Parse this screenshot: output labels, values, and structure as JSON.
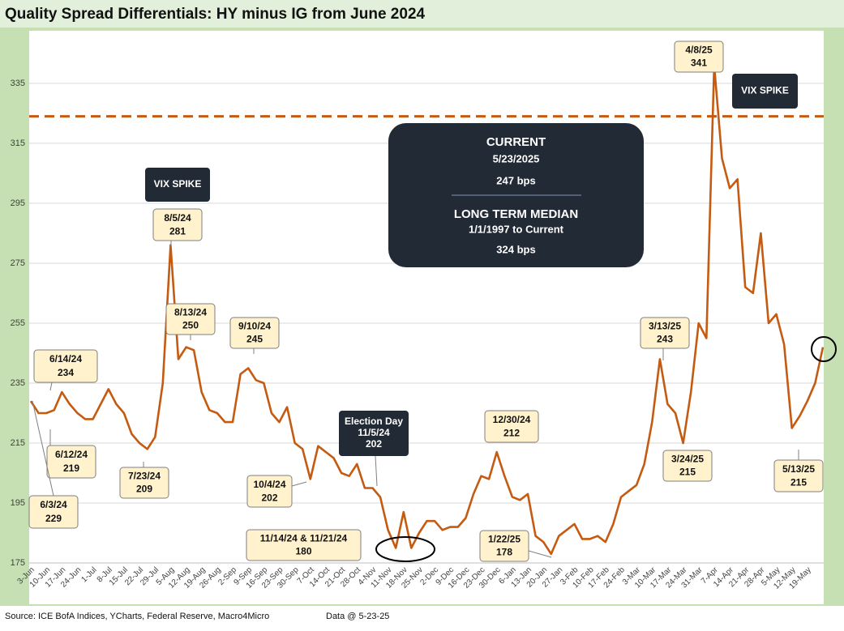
{
  "chart_data": {
    "type": "line",
    "title": "Quality Spread Differentials: HY minus IG from June 2024",
    "categories": [
      "3-Jun",
      null,
      "10-Jun",
      null,
      "17-Jun",
      null,
      "24-Jun",
      null,
      "1-Jul",
      null,
      "8-Jul",
      null,
      "15-Jul",
      null,
      "22-Jul",
      null,
      "29-Jul",
      null,
      "5-Aug",
      null,
      "12-Aug",
      null,
      "19-Aug",
      null,
      "26-Aug",
      null,
      "2-Sep",
      null,
      "9-Sep",
      null,
      "16-Sep",
      null,
      "23-Sep",
      null,
      "30-Sep",
      null,
      "7-Oct",
      null,
      "14-Oct",
      null,
      "21-Oct",
      null,
      "28-Oct",
      null,
      "4-Nov",
      null,
      "11-Nov",
      null,
      "18-Nov",
      null,
      "25-Nov",
      null,
      "2-Dec",
      null,
      "9-Dec",
      null,
      "16-Dec",
      null,
      "23-Dec",
      null,
      "30-Dec",
      null,
      "6-Jan",
      null,
      "13-Jan",
      null,
      "20-Jan",
      null,
      "27-Jan",
      null,
      "3-Feb",
      null,
      "10-Feb",
      null,
      "17-Feb",
      null,
      "24-Feb",
      null,
      "3-Mar",
      null,
      "10-Mar",
      null,
      "17-Mar",
      null,
      "24-Mar",
      null,
      "31-Mar",
      null,
      "7-Apr",
      null,
      "14-Apr",
      null,
      "21-Apr",
      null,
      "28-Apr",
      null,
      "5-May",
      null,
      "12-May",
      null,
      "19-May",
      null,
      null
    ],
    "series": [
      {
        "name": "HY minus IG",
        "color": "#c55a11",
        "values": [
          229,
          225,
          225,
          226,
          232,
          228,
          225,
          223,
          223,
          228,
          233,
          228,
          225,
          218,
          215,
          213,
          217,
          235,
          281,
          243,
          247,
          246,
          232,
          226,
          225,
          222,
          222,
          238,
          240,
          236,
          235,
          225,
          222,
          227,
          215,
          213,
          203,
          214,
          212,
          210,
          205,
          204,
          208,
          200,
          200,
          197,
          186,
          180,
          192,
          180,
          185,
          189,
          189,
          186,
          187,
          187,
          190,
          198,
          204,
          203,
          212,
          204,
          197,
          196,
          198,
          184,
          182,
          178,
          184,
          186,
          188,
          183,
          183,
          184,
          182,
          188,
          197,
          199,
          201,
          208,
          222,
          243,
          228,
          225,
          215,
          232,
          255,
          250,
          341,
          310,
          300,
          303,
          267,
          265,
          285,
          255,
          258,
          248,
          220,
          224,
          229,
          235,
          247
        ]
      }
    ],
    "median": 324,
    "median_color": "#c55a11",
    "ylim": [
      175,
      352
    ],
    "yticks": [
      175,
      195,
      215,
      235,
      255,
      275,
      295,
      315,
      335
    ],
    "grid": true,
    "callouts": [
      {
        "label": "6/14/24",
        "value": 234
      },
      {
        "label": "6/12/24",
        "value": 219
      },
      {
        "label": "6/3/24",
        "value": 229
      },
      {
        "label": "7/23/24",
        "value": 209
      },
      {
        "label": "8/5/24",
        "value": 281
      },
      {
        "label": "8/13/24",
        "value": 250
      },
      {
        "label": "9/10/24",
        "value": 245
      },
      {
        "label": "10/4/24",
        "value": 202
      },
      {
        "label": "11/14/24 & 11/21/24",
        "value": 180
      },
      {
        "label": "12/30/24",
        "value": 212
      },
      {
        "label": "1/22/25",
        "value": 178
      },
      {
        "label": "3/13/25",
        "value": 243
      },
      {
        "label": "3/24/25",
        "value": 215
      },
      {
        "label": "4/8/25",
        "value": 341
      },
      {
        "label": "5/13/25",
        "value": 215
      }
    ],
    "vix_labels": [
      "VIX SPIKE",
      "VIX SPIKE"
    ],
    "election": {
      "label": "Election Day",
      "date": "11/5/24",
      "value": 202
    },
    "summary": {
      "current_title": "CURRENT",
      "current_date": "5/23/2025",
      "current_value": "247 bps",
      "median_title": "LONG TERM MEDIAN",
      "median_period": "1/1/1997 to Current",
      "median_value": "324 bps"
    },
    "source": "Source: ICE BofA Indices, YCharts, Federal Reserve, Macro4Micro",
    "data_date": "Data @ 5-23-25"
  }
}
